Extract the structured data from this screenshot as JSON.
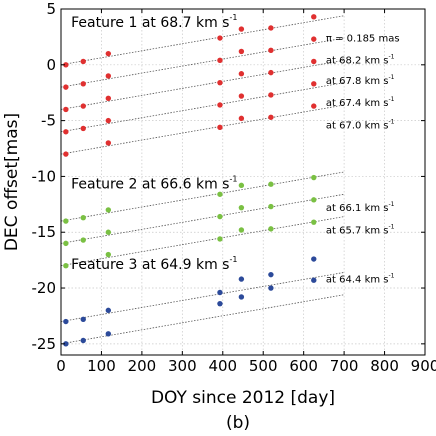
{
  "chart_data": {
    "type": "scatter",
    "xlabel": "DOY since 2012 [day]",
    "ylabel": "DEC offset[mas]",
    "caption": "(b)",
    "xlim": [
      0,
      900
    ],
    "ylim": [
      -26,
      5
    ],
    "xticks": [
      0,
      100,
      200,
      300,
      400,
      500,
      600,
      700,
      800,
      900
    ],
    "yticks": [
      5,
      0,
      -5,
      -10,
      -15,
      -20,
      -25
    ],
    "grid": true,
    "colors": {
      "feature1": "#e03030",
      "feature2": "#7ac043",
      "feature3": "#2c4a9a"
    },
    "feature_titles": [
      {
        "text": "Feature 1 at 68.7 km s",
        "sup": "-1",
        "x": 25,
        "y": 3.4
      },
      {
        "text": "Feature 2 at 66.6 km s",
        "sup": "-1",
        "x": 25,
        "y": -11.1
      },
      {
        "text": "Feature 3 at 64.9 km s",
        "sup": "-1",
        "x": 25,
        "y": -18.3
      }
    ],
    "annotations": [
      {
        "text": "π = 0.185 mas",
        "sup": "",
        "x": 655,
        "y": 2.1
      },
      {
        "text": "at 68.2 km s",
        "sup": "-1",
        "x": 655,
        "y": 0.1
      },
      {
        "text": "at 67.8 km s",
        "sup": "-1",
        "x": 655,
        "y": -1.7
      },
      {
        "text": "at 67.4 km s",
        "sup": "-1",
        "x": 655,
        "y": -3.7
      },
      {
        "text": "at 67.0 km s",
        "sup": "-1",
        "x": 655,
        "y": -5.7
      },
      {
        "text": "at 66.1 km s",
        "sup": "-1",
        "x": 655,
        "y": -13.1
      },
      {
        "text": "at 65.7 km s",
        "sup": "-1",
        "x": 655,
        "y": -15.1
      },
      {
        "text": "at 64.4 km s",
        "sup": "-1",
        "x": 655,
        "y": -19.5
      }
    ],
    "series": [
      {
        "group": "feature1",
        "fit": [
          [
            0,
            0
          ],
          [
            700,
            4.4
          ]
        ],
        "points": [
          [
            12,
            0
          ],
          [
            55,
            0.3
          ],
          [
            117,
            1.0
          ],
          [
            393,
            2.4
          ],
          [
            446,
            3.2
          ],
          [
            519,
            3.3
          ],
          [
            625,
            4.3
          ]
        ]
      },
      {
        "group": "feature1",
        "fit": [
          [
            0,
            -2
          ],
          [
            700,
            2.4
          ]
        ],
        "points": [
          [
            12,
            -2
          ],
          [
            55,
            -1.7
          ],
          [
            117,
            -1.0
          ],
          [
            393,
            0.4
          ],
          [
            446,
            1.2
          ],
          [
            519,
            1.3
          ],
          [
            625,
            2.3
          ]
        ]
      },
      {
        "group": "feature1",
        "fit": [
          [
            0,
            -4
          ],
          [
            700,
            0.4
          ]
        ],
        "points": [
          [
            12,
            -4
          ],
          [
            55,
            -3.7
          ],
          [
            117,
            -3.0
          ],
          [
            393,
            -1.6
          ],
          [
            446,
            -0.8
          ],
          [
            519,
            -0.7
          ],
          [
            625,
            0.3
          ]
        ]
      },
      {
        "group": "feature1",
        "fit": [
          [
            0,
            -6
          ],
          [
            700,
            -1.6
          ]
        ],
        "points": [
          [
            12,
            -6
          ],
          [
            55,
            -5.7
          ],
          [
            117,
            -5.0
          ],
          [
            393,
            -3.6
          ],
          [
            446,
            -2.8
          ],
          [
            519,
            -2.7
          ],
          [
            625,
            -1.7
          ]
        ]
      },
      {
        "group": "feature1",
        "fit": [
          [
            0,
            -8
          ],
          [
            700,
            -3.6
          ]
        ],
        "points": [
          [
            12,
            -8
          ],
          [
            117,
            -7.0
          ],
          [
            393,
            -5.6
          ],
          [
            446,
            -4.8
          ],
          [
            519,
            -4.7
          ],
          [
            625,
            -3.7
          ]
        ]
      },
      {
        "group": "feature2",
        "fit": [
          [
            0,
            -14
          ],
          [
            700,
            -9.6
          ]
        ],
        "points": [
          [
            12,
            -14
          ],
          [
            55,
            -13.7
          ],
          [
            117,
            -13.0
          ],
          [
            393,
            -11.6
          ],
          [
            446,
            -10.8
          ],
          [
            519,
            -10.7
          ],
          [
            625,
            -10.1
          ]
        ]
      },
      {
        "group": "feature2",
        "fit": [
          [
            0,
            -16
          ],
          [
            700,
            -11.6
          ]
        ],
        "points": [
          [
            12,
            -16
          ],
          [
            55,
            -15.7
          ],
          [
            117,
            -15.0
          ],
          [
            393,
            -13.6
          ],
          [
            446,
            -12.8
          ],
          [
            519,
            -12.7
          ],
          [
            625,
            -12.1
          ]
        ]
      },
      {
        "group": "feature2",
        "fit": [
          [
            0,
            -18
          ],
          [
            700,
            -13.6
          ]
        ],
        "points": [
          [
            12,
            -18
          ],
          [
            117,
            -17.0
          ],
          [
            393,
            -15.6
          ],
          [
            446,
            -14.8
          ],
          [
            519,
            -14.7
          ],
          [
            625,
            -14.1
          ]
        ]
      },
      {
        "group": "feature3",
        "fit": [
          [
            0,
            -23
          ],
          [
            700,
            -18.6
          ]
        ],
        "points": [
          [
            12,
            -23
          ],
          [
            55,
            -22.8
          ],
          [
            117,
            -22.0
          ],
          [
            393,
            -20.4
          ],
          [
            446,
            -19.2
          ],
          [
            519,
            -18.8
          ],
          [
            625,
            -17.4
          ]
        ]
      },
      {
        "group": "feature3",
        "fit": [
          [
            0,
            -25
          ],
          [
            700,
            -20.6
          ]
        ],
        "points": [
          [
            12,
            -25
          ],
          [
            55,
            -24.7
          ],
          [
            117,
            -24.1
          ],
          [
            393,
            -21.4
          ],
          [
            446,
            -20.8
          ],
          [
            519,
            -20.0
          ],
          [
            625,
            -19.3
          ]
        ]
      }
    ]
  }
}
